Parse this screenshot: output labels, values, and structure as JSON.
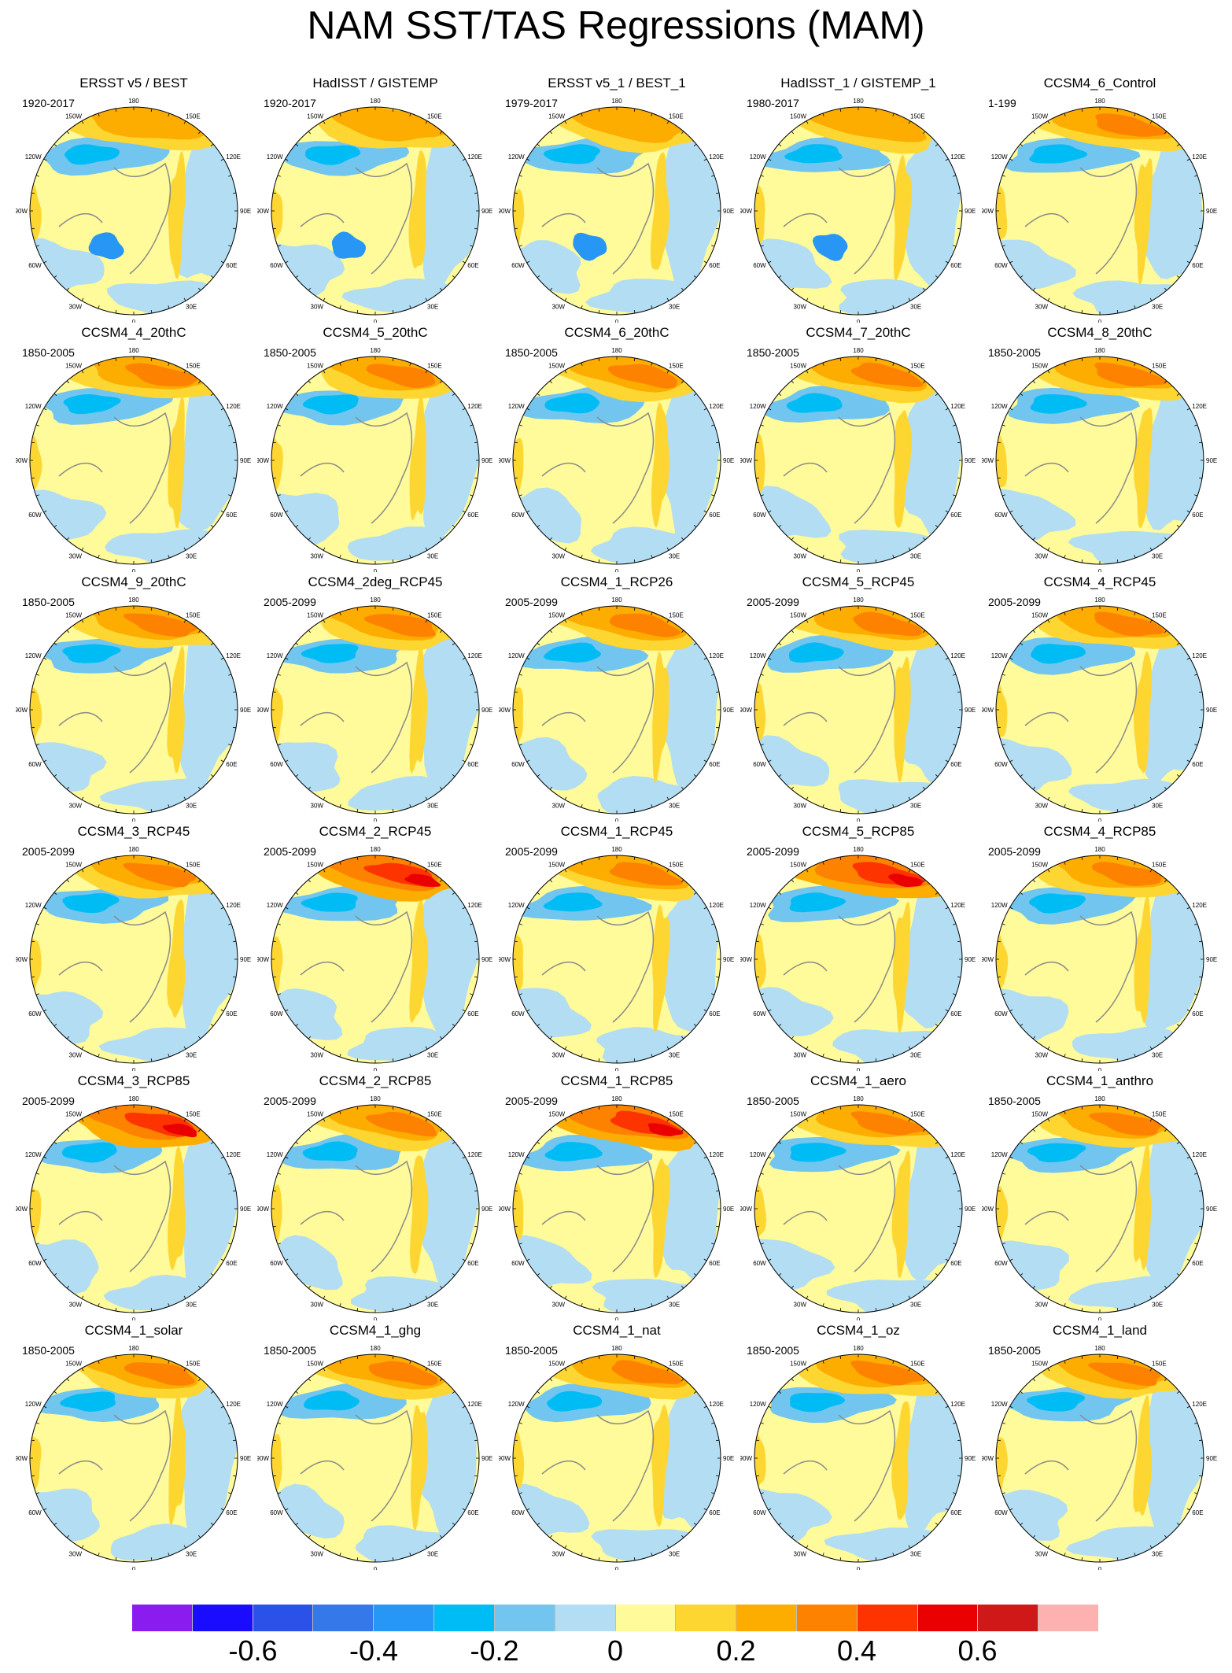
{
  "title": "NAM SST/TAS Regressions (MAM)",
  "map_labels": {
    "top": "180",
    "top_left": "150W",
    "top_right": "150E",
    "upper_left": "120W",
    "upper_right": "120E",
    "left": "90W",
    "right": "90E",
    "lower_left": "60W",
    "lower_right": "60E",
    "bottom_left": "30W",
    "bottom_right": "30E",
    "bottom": "0"
  },
  "panels": [
    {
      "title": "ERSST v5 / BEST",
      "period": "1920-2017",
      "style": "obs"
    },
    {
      "title": "HadISST / GISTEMP",
      "period": "1920-2017",
      "style": "obs"
    },
    {
      "title": "ERSST v5_1 / BEST_1",
      "period": "1979-2017",
      "style": "obs"
    },
    {
      "title": "HadISST_1 / GISTEMP_1",
      "period": "1980-2017",
      "style": "obs"
    },
    {
      "title": "CCSM4_6_Control",
      "period": "1-199",
      "style": "model"
    },
    {
      "title": "CCSM4_4_20thC",
      "period": "1850-2005",
      "style": "model"
    },
    {
      "title": "CCSM4_5_20thC",
      "period": "1850-2005",
      "style": "model"
    },
    {
      "title": "CCSM4_6_20thC",
      "period": "1850-2005",
      "style": "model"
    },
    {
      "title": "CCSM4_7_20thC",
      "period": "1850-2005",
      "style": "model"
    },
    {
      "title": "CCSM4_8_20thC",
      "period": "1850-2005",
      "style": "model"
    },
    {
      "title": "CCSM4_9_20thC",
      "period": "1850-2005",
      "style": "model"
    },
    {
      "title": "CCSM4_2deg_RCP45",
      "period": "2005-2099",
      "style": "model"
    },
    {
      "title": "CCSM4_1_RCP26",
      "period": "2005-2099",
      "style": "model"
    },
    {
      "title": "CCSM4_5_RCP45",
      "period": "2005-2099",
      "style": "model"
    },
    {
      "title": "CCSM4_4_RCP45",
      "period": "2005-2099",
      "style": "model"
    },
    {
      "title": "CCSM4_3_RCP45",
      "period": "2005-2099",
      "style": "model"
    },
    {
      "title": "CCSM4_2_RCP45",
      "period": "2005-2099",
      "style": "strong"
    },
    {
      "title": "CCSM4_1_RCP45",
      "period": "2005-2099",
      "style": "model"
    },
    {
      "title": "CCSM4_5_RCP85",
      "period": "2005-2099",
      "style": "strong"
    },
    {
      "title": "CCSM4_4_RCP85",
      "period": "2005-2099",
      "style": "model"
    },
    {
      "title": "CCSM4_3_RCP85",
      "period": "2005-2099",
      "style": "strong"
    },
    {
      "title": "CCSM4_2_RCP85",
      "period": "2005-2099",
      "style": "model"
    },
    {
      "title": "CCSM4_1_RCP85",
      "period": "2005-2099",
      "style": "strong"
    },
    {
      "title": "CCSM4_1_aero",
      "period": "1850-2005",
      "style": "model"
    },
    {
      "title": "CCSM4_1_anthro",
      "period": "1850-2005",
      "style": "model"
    },
    {
      "title": "CCSM4_1_solar",
      "period": "1850-2005",
      "style": "model"
    },
    {
      "title": "CCSM4_1_ghg",
      "period": "1850-2005",
      "style": "model"
    },
    {
      "title": "CCSM4_1_nat",
      "period": "1850-2005",
      "style": "model"
    },
    {
      "title": "CCSM4_1_oz",
      "period": "1850-2005",
      "style": "model"
    },
    {
      "title": "CCSM4_1_land",
      "period": "1850-2005",
      "style": "model"
    }
  ],
  "colorbar": {
    "colors": [
      "#8b1cf0",
      "#1a0dff",
      "#2b52e8",
      "#3478ea",
      "#2896f4",
      "#00bcf4",
      "#72c5ef",
      "#b2ddf2",
      "#fffa9a",
      "#fed632",
      "#fdac00",
      "#fd8200",
      "#fd3400",
      "#ea0000",
      "#cf1919",
      "#feb1b1"
    ],
    "labels": [
      "-0.6",
      "-0.4",
      "-0.2",
      "0",
      "0.2",
      "0.4",
      "0.6"
    ]
  }
}
